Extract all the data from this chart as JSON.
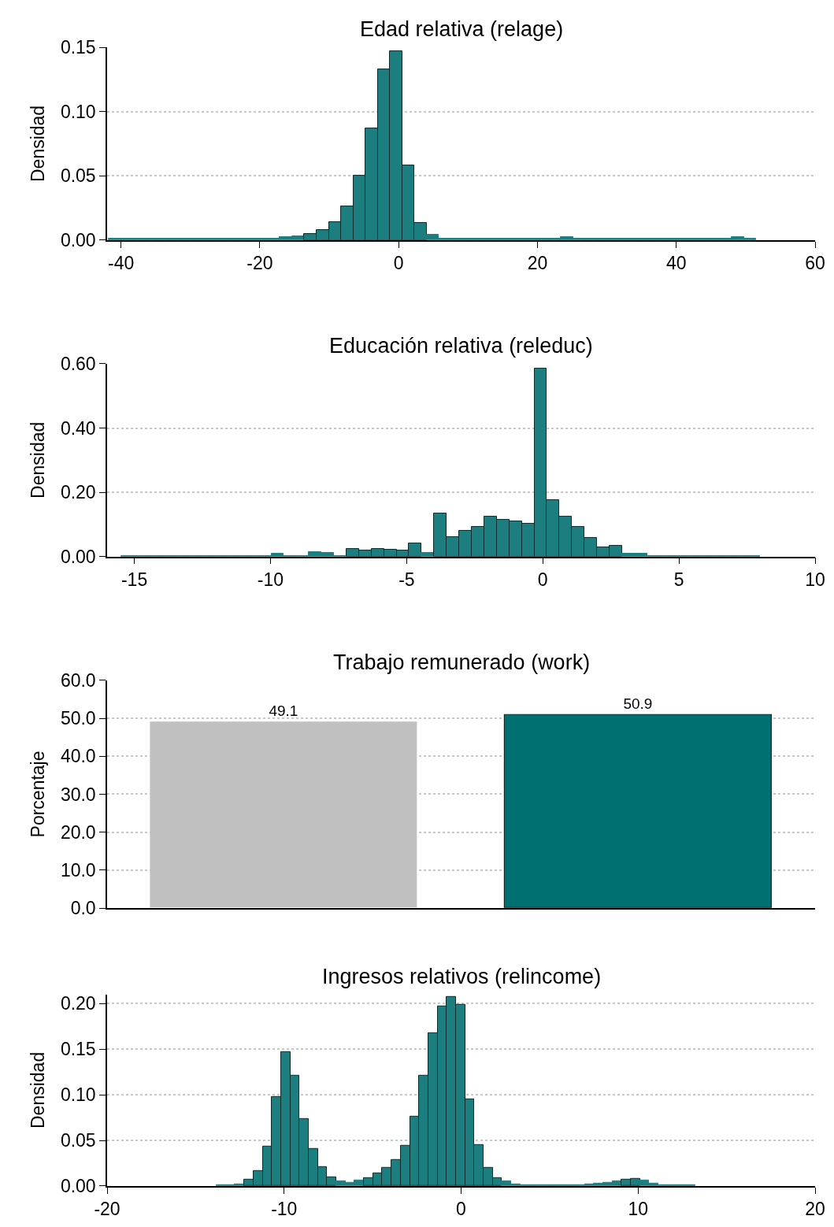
{
  "chart_data": [
    {
      "type": "histogram",
      "title": "Edad relativa (relage)",
      "ylabel": "Densidad",
      "color": "#1d7e80",
      "grid": "y",
      "bins": [
        -41.74,
        -39.98,
        -38.22,
        -36.46,
        -34.7,
        -32.94,
        -31.18,
        -29.42,
        -27.66,
        -25.9,
        -24.14,
        -22.38,
        -20.62,
        -18.86,
        -17.1,
        -15.34,
        -13.58,
        -11.82,
        -10.06,
        -8.3,
        -6.54,
        -4.78,
        -3.02,
        -1.26,
        0.5,
        2.26,
        4.02,
        5.78,
        7.54,
        9.3,
        11.06,
        12.82,
        14.58,
        16.34,
        18.1,
        19.86,
        21.62,
        23.38,
        25.14,
        26.9,
        28.66,
        30.42,
        32.18,
        33.94,
        35.7,
        37.46,
        39.22,
        40.98,
        42.74,
        44.5,
        46.26,
        48.02,
        49.78,
        51.54
      ],
      "values": [
        0.001,
        0.001,
        0.001,
        0.001,
        0.001,
        0.001,
        0.001,
        0.001,
        0.001,
        0.001,
        0.001,
        0.001,
        0.001,
        0.001,
        0.002,
        0.003,
        0.005,
        0.008,
        0.014,
        0.026,
        0.05,
        0.087,
        0.133,
        0.147,
        0.058,
        0.013,
        0.004,
        0.001,
        0.001,
        0.001,
        0.001,
        0.001,
        0.001,
        0.001,
        0.001,
        0.001,
        0.001,
        0.002,
        0.001,
        0.001,
        0.001,
        0.001,
        0.001,
        0.001,
        0.001,
        0.001,
        0.001,
        0.001,
        0.001,
        0.001,
        0.001,
        0.002,
        0.001
      ],
      "xlim": [
        -42,
        60
      ],
      "xticks": [
        -40,
        -20,
        0,
        20,
        40,
        60
      ],
      "ylim": [
        0,
        0.15
      ],
      "yticks": [
        {
          "value": 0,
          "label": "0.00"
        },
        {
          "value": 0.05,
          "label": "0.05"
        },
        {
          "value": 0.1,
          "label": "0.10"
        },
        {
          "value": 0.15,
          "label": "0.15"
        }
      ]
    },
    {
      "type": "histogram",
      "title": "Educación relativa (releduc)",
      "ylabel": "Densidad",
      "color": "#1d7e80",
      "grid": "y",
      "bins": [
        -15.49,
        -15.03,
        -14.57,
        -14.11,
        -13.65,
        -13.19,
        -12.73,
        -12.27,
        -11.81,
        -11.35,
        -10.89,
        -10.43,
        -9.97,
        -9.51,
        -9.05,
        -8.59,
        -8.13,
        -7.67,
        -7.21,
        -6.75,
        -6.29,
        -5.83,
        -5.37,
        -4.91,
        -4.45,
        -3.99,
        -3.53,
        -3.07,
        -2.61,
        -2.15,
        -1.69,
        -1.23,
        -0.77,
        -0.31,
        0.15,
        0.61,
        1.07,
        1.53,
        1.99,
        2.45,
        2.91,
        3.37,
        3.83,
        4.29,
        4.75,
        5.21,
        5.67,
        6.13,
        6.59,
        7.05,
        7.51,
        7.97
      ],
      "values": [
        0.001,
        0.001,
        0.001,
        0.001,
        0.001,
        0.001,
        0.001,
        0.001,
        0.001,
        0.001,
        0.001,
        0.001,
        0.009,
        0.001,
        0.002,
        0.014,
        0.011,
        0.002,
        0.024,
        0.018,
        0.025,
        0.021,
        0.02,
        0.04,
        0.012,
        0.134,
        0.061,
        0.081,
        0.093,
        0.125,
        0.115,
        0.109,
        0.103,
        0.586,
        0.176,
        0.125,
        0.093,
        0.057,
        0.028,
        0.034,
        0.01,
        0.008,
        0.002,
        0.001,
        0.001,
        0.001,
        0.001,
        0.001,
        0.001,
        0.001,
        0.001
      ],
      "xlim": [
        -16,
        10
      ],
      "xticks": [
        -15,
        -10,
        -5,
        0,
        5,
        10
      ],
      "ylim": [
        0,
        0.6
      ],
      "yticks": [
        {
          "value": 0,
          "label": "0.00"
        },
        {
          "value": 0.2,
          "label": "0.20"
        },
        {
          "value": 0.4,
          "label": "0.40"
        },
        {
          "value": 0.6,
          "label": "0.60"
        }
      ]
    },
    {
      "type": "bar",
      "title": "Trabajo remunerado (work)",
      "ylabel": "Porcentaje",
      "grid": "y",
      "tick_labels": "y",
      "data_labels": true,
      "categories": [
        null,
        null
      ],
      "values": [
        49.1,
        50.9
      ],
      "colors": [
        "#c0c0c0",
        "#007070"
      ],
      "ylim": [
        0,
        60
      ],
      "yticks": [
        {
          "value": 0,
          "label": "0.0"
        },
        {
          "value": 10,
          "label": "10.0"
        },
        {
          "value": 20,
          "label": "20.0"
        },
        {
          "value": 30,
          "label": "30.0"
        },
        {
          "value": 40,
          "label": "40.0"
        },
        {
          "value": 50,
          "label": "50.0"
        },
        {
          "value": 60,
          "label": "60.0"
        }
      ]
    },
    {
      "type": "histogram",
      "title": "Ingresos relativos (relincome)",
      "ylabel": "Densidad",
      "color": "#1d7e80",
      "grid": "y",
      "bins": [
        -13.81,
        -13.29,
        -12.77,
        -12.25,
        -11.73,
        -11.21,
        -10.69,
        -10.17,
        -9.65,
        -9.13,
        -8.61,
        -8.09,
        -7.57,
        -7.05,
        -6.53,
        -6.01,
        -5.49,
        -4.97,
        -4.45,
        -3.93,
        -3.41,
        -2.89,
        -2.37,
        -1.85,
        -1.33,
        -0.81,
        -0.29,
        0.23,
        0.75,
        1.27,
        1.79,
        2.31,
        2.83,
        3.35,
        3.87,
        4.39,
        4.91,
        5.43,
        5.95,
        6.47,
        6.99,
        7.51,
        8.03,
        8.55,
        9.07,
        9.59,
        10.11,
        10.63,
        11.15,
        11.67,
        12.19,
        12.71,
        13.23
      ],
      "values": [
        0.001,
        0.001,
        0.002,
        0.007,
        0.017,
        0.043,
        0.098,
        0.147,
        0.121,
        0.074,
        0.041,
        0.021,
        0.01,
        0.005,
        0.004,
        0.006,
        0.009,
        0.014,
        0.02,
        0.029,
        0.044,
        0.076,
        0.121,
        0.168,
        0.197,
        0.207,
        0.199,
        0.095,
        0.045,
        0.02,
        0.009,
        0.005,
        0.002,
        0.001,
        0.001,
        0.001,
        0.001,
        0.001,
        0.001,
        0.001,
        0.002,
        0.003,
        0.004,
        0.005,
        0.007,
        0.008,
        0.006,
        0.003,
        0.001,
        0.001,
        0.001,
        0.001
      ],
      "xlim": [
        -20,
        20
      ],
      "xticks": [
        -20,
        -10,
        0,
        10,
        20
      ],
      "ylim": [
        0,
        0.21
      ],
      "yticks": [
        {
          "value": 0,
          "label": "0.00"
        },
        {
          "value": 0.05,
          "label": "0.05"
        },
        {
          "value": 0.1,
          "label": "0.10"
        },
        {
          "value": 0.15,
          "label": "0.15"
        },
        {
          "value": 0.2,
          "label": "0.20"
        }
      ]
    }
  ]
}
